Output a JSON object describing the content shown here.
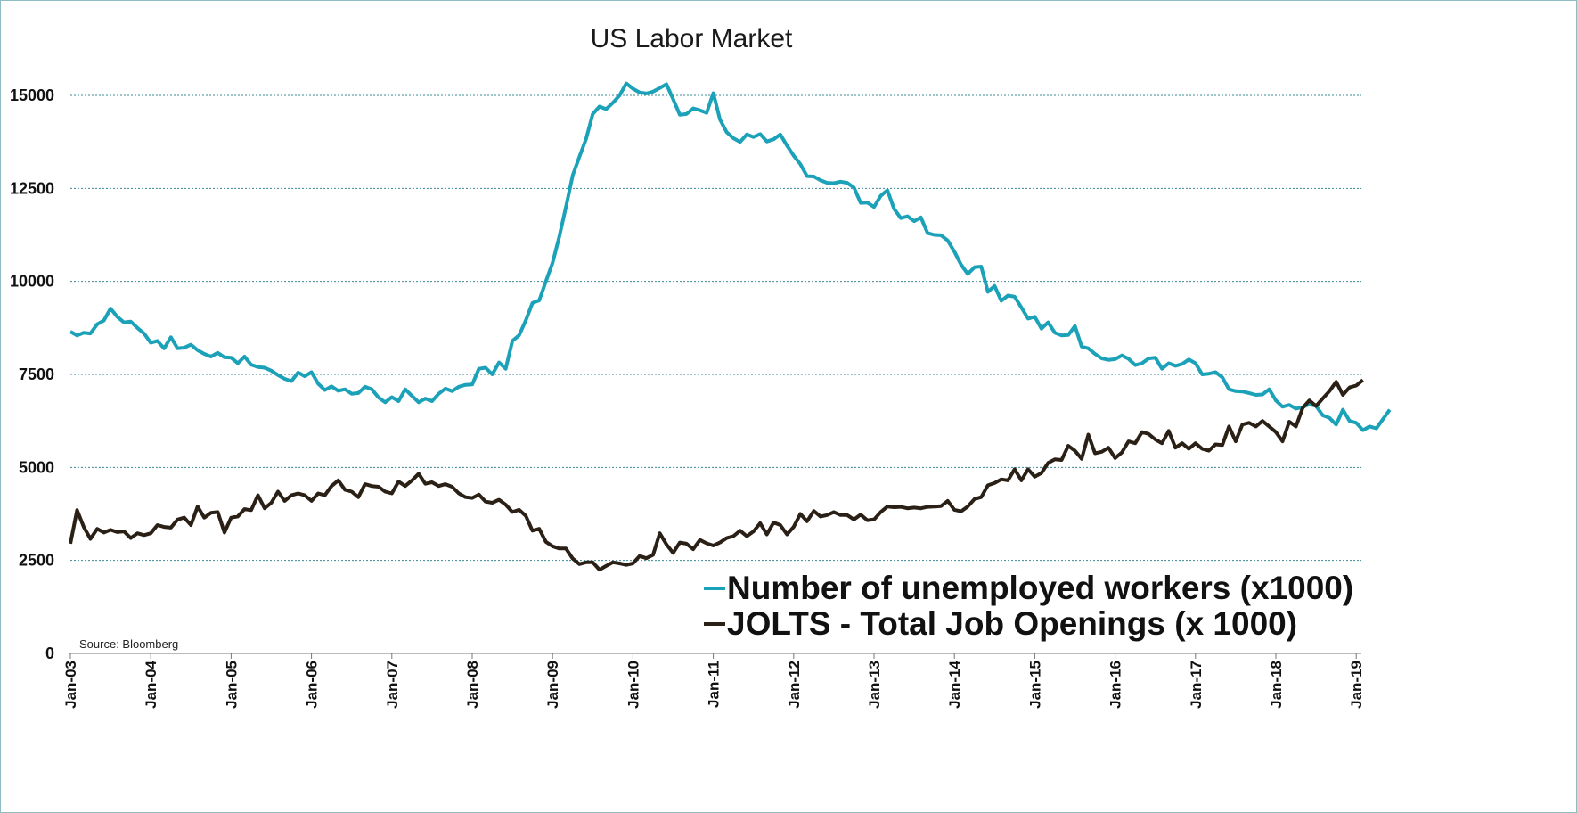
{
  "chart_data": {
    "type": "line",
    "title": "US Labor Market",
    "source": "Source: Bloomberg",
    "xlabel": "",
    "ylabel": "",
    "ylim": [
      0,
      15000
    ],
    "yticks": [
      "0",
      "2500",
      "5000",
      "7500",
      "10000",
      "12500",
      "15000"
    ],
    "xticks": [
      "Jan-03",
      "Jan-04",
      "Jan-05",
      "Jan-06",
      "Jan-07",
      "Jan-08",
      "Jan-09",
      "Jan-10",
      "Jan-11",
      "Jan-12",
      "Jan-13",
      "Jan-14",
      "Jan-15",
      "Jan-16",
      "Jan-17",
      "Jan-18",
      "Jan-19"
    ],
    "x_start": "Jan-03",
    "frequency": "monthly",
    "legend_position": "bottom-right",
    "series": [
      {
        "name": "Number of unemployed workers (x1000)",
        "color": "#1ba1b8",
        "values": [
          8650,
          8550,
          8620,
          8600,
          8850,
          8950,
          9270,
          9050,
          8900,
          8920,
          8750,
          8600,
          8350,
          8400,
          8200,
          8500,
          8200,
          8220,
          8300,
          8150,
          8050,
          7980,
          8080,
          7960,
          7950,
          7800,
          7980,
          7760,
          7700,
          7680,
          7600,
          7480,
          7380,
          7320,
          7550,
          7450,
          7560,
          7250,
          7080,
          7180,
          7060,
          7100,
          6980,
          7000,
          7170,
          7100,
          6880,
          6750,
          6890,
          6780,
          7100,
          6920,
          6750,
          6850,
          6780,
          6980,
          7120,
          7050,
          7170,
          7220,
          7230,
          7650,
          7680,
          7500,
          7820,
          7650,
          8400,
          8550,
          8950,
          9420,
          9490,
          10000,
          10500,
          11200,
          12000,
          12850,
          13350,
          13830,
          14500,
          14700,
          14630,
          14800,
          15000,
          15320,
          15180,
          15080,
          15050,
          15100,
          15200,
          15300,
          14900,
          14480,
          14500,
          14650,
          14600,
          14530,
          15060,
          14350,
          14010,
          13850,
          13750,
          13950,
          13880,
          13960,
          13760,
          13820,
          13950,
          13650,
          13380,
          13150,
          12830,
          12820,
          12720,
          12650,
          12640,
          12680,
          12650,
          12520,
          12110,
          12120,
          12000,
          12300,
          12450,
          11950,
          11700,
          11750,
          11620,
          11720,
          11300,
          11250,
          11240,
          11100,
          10800,
          10450,
          10200,
          10380,
          10400,
          9720,
          9880,
          9480,
          9620,
          9590,
          9300,
          9000,
          9050,
          8730,
          8900,
          8620,
          8550,
          8560,
          8800,
          8250,
          8200,
          8050,
          7930,
          7890,
          7910,
          8010,
          7920,
          7750,
          7800,
          7930,
          7950,
          7650,
          7800,
          7730,
          7780,
          7900,
          7800,
          7500,
          7520,
          7560,
          7420,
          7100,
          7050,
          7040,
          7000,
          6950,
          6960,
          7100,
          6800,
          6630,
          6680,
          6580,
          6620,
          6700,
          6650,
          6400,
          6330,
          6150,
          6550,
          6250,
          6200,
          6000,
          6100,
          6050,
          6300,
          6550
        ]
      },
      {
        "name": "JOLTS - Total Job Openings (x 1000)",
        "color": "#2a2016",
        "values": [
          2950,
          3850,
          3400,
          3080,
          3350,
          3250,
          3320,
          3260,
          3280,
          3100,
          3230,
          3180,
          3230,
          3450,
          3400,
          3380,
          3600,
          3650,
          3450,
          3950,
          3650,
          3780,
          3800,
          3250,
          3650,
          3680,
          3880,
          3850,
          4250,
          3900,
          4050,
          4350,
          4100,
          4250,
          4300,
          4250,
          4100,
          4300,
          4250,
          4500,
          4650,
          4400,
          4350,
          4200,
          4550,
          4500,
          4480,
          4350,
          4300,
          4620,
          4500,
          4650,
          4830,
          4560,
          4600,
          4500,
          4550,
          4480,
          4300,
          4200,
          4180,
          4270,
          4080,
          4050,
          4130,
          4000,
          3800,
          3860,
          3700,
          3300,
          3350,
          3000,
          2880,
          2820,
          2820,
          2550,
          2400,
          2450,
          2450,
          2250,
          2350,
          2450,
          2420,
          2380,
          2420,
          2620,
          2560,
          2650,
          3230,
          2930,
          2700,
          2980,
          2950,
          2800,
          3050,
          2960,
          2900,
          2980,
          3100,
          3150,
          3300,
          3150,
          3280,
          3500,
          3200,
          3520,
          3450,
          3200,
          3400,
          3750,
          3550,
          3830,
          3680,
          3720,
          3800,
          3720,
          3720,
          3600,
          3730,
          3580,
          3600,
          3800,
          3950,
          3930,
          3940,
          3900,
          3920,
          3900,
          3940,
          3950,
          3960,
          4100,
          3860,
          3820,
          3950,
          4150,
          4200,
          4520,
          4580,
          4680,
          4650,
          4950,
          4650,
          4950,
          4750,
          4850,
          5120,
          5220,
          5200,
          5580,
          5450,
          5230,
          5880,
          5380,
          5420,
          5530,
          5250,
          5400,
          5700,
          5650,
          5950,
          5900,
          5750,
          5650,
          5980,
          5530,
          5650,
          5500,
          5650,
          5500,
          5450,
          5620,
          5600,
          6100,
          5700,
          6150,
          6200,
          6100,
          6250,
          6100,
          5950,
          5700,
          6230,
          6100,
          6600,
          6800,
          6650,
          6850,
          7050,
          7300,
          6950,
          7150,
          7200,
          7350
        ]
      }
    ]
  }
}
